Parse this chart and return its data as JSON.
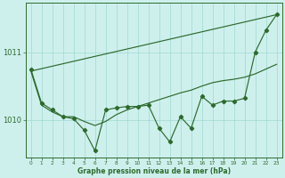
{
  "xlabel": "Graphe pression niveau de la mer (hPa)",
  "hours": [
    0,
    1,
    2,
    3,
    4,
    5,
    6,
    7,
    8,
    9,
    10,
    11,
    12,
    13,
    14,
    15,
    16,
    17,
    18,
    19,
    20,
    21,
    22,
    23
  ],
  "jagged_line": [
    1010.75,
    1010.25,
    1010.15,
    1010.05,
    1010.02,
    1009.85,
    1009.55,
    1010.15,
    1010.18,
    1010.2,
    1010.2,
    1010.22,
    1009.88,
    1009.68,
    1010.05,
    1009.88,
    1010.35,
    1010.22,
    1010.28,
    1010.28,
    1010.32,
    1011.0,
    1011.32,
    1011.55
  ],
  "smooth_line": [
    1010.72,
    1010.22,
    1010.12,
    1010.05,
    1010.05,
    1009.98,
    1009.92,
    1009.98,
    1010.08,
    1010.15,
    1010.2,
    1010.25,
    1010.3,
    1010.35,
    1010.4,
    1010.44,
    1010.5,
    1010.55,
    1010.58,
    1010.6,
    1010.63,
    1010.68,
    1010.75,
    1010.82
  ],
  "trend_line_x": [
    0,
    23
  ],
  "trend_line_y": [
    1010.72,
    1011.55
  ],
  "bg_color": "#cef0ed",
  "line_color": "#2d6a2d",
  "grid_color": "#9fd8d2",
  "yticks": [
    1010,
    1011
  ],
  "ylim": [
    1009.45,
    1011.72
  ],
  "xlim": [
    -0.5,
    23.5
  ],
  "figsize": [
    3.2,
    2.0
  ],
  "dpi": 100
}
